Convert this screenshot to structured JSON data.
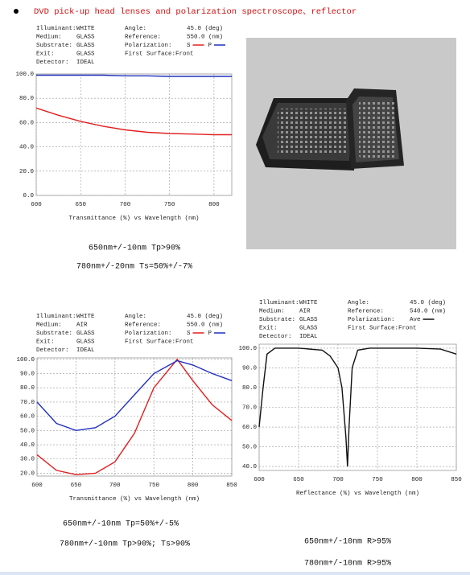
{
  "title": "DVD pick-up head lenses and polarization spectroscope、reflector",
  "chart_data": [
    {
      "type": "line",
      "info": {
        "left": [
          [
            "Illuminant:",
            "WHITE"
          ],
          [
            "Medium:",
            "GLASS"
          ],
          [
            "Substrate:",
            "GLASS"
          ],
          [
            "Exit:",
            "GLASS"
          ],
          [
            "Detector:",
            "IDEAL"
          ]
        ],
        "right": [
          [
            "Angle:",
            "45.0 (deg)"
          ],
          [
            "Reference:",
            "550.0 (nm)"
          ],
          [
            "Polarization:"
          ],
          [
            "First Surface:Front"
          ]
        ]
      },
      "x_label": "Transmittance (%)  vs  Wavelength (nm)",
      "x": [
        600,
        625,
        650,
        675,
        700,
        725,
        750,
        775,
        800,
        820
      ],
      "series": [
        {
          "name": "S",
          "color": "#e02020",
          "values": [
            72,
            66,
            61,
            57,
            54,
            52,
            51,
            50.5,
            50,
            50
          ]
        },
        {
          "name": "P",
          "color": "#2030c0",
          "values": [
            99,
            99,
            99,
            99,
            98.5,
            98.5,
            98,
            98,
            98,
            98
          ]
        }
      ],
      "xlim": [
        600,
        820
      ],
      "xticks": [
        600,
        650,
        700,
        750,
        800
      ],
      "ylim": [
        0,
        100
      ],
      "yticks": [
        {
          "value": 0,
          "label": "0.0"
        },
        {
          "value": 20,
          "label": "20.0"
        },
        {
          "value": 40,
          "label": "40.0"
        },
        {
          "value": 60,
          "label": "60.0"
        },
        {
          "value": 80,
          "label": "80.0"
        },
        {
          "value": 100,
          "label": "100.0"
        }
      ],
      "grid": true
    },
    {
      "type": "line",
      "info": {
        "left": [
          [
            "Illuminant:",
            "WHITE"
          ],
          [
            "Medium:",
            "AIR"
          ],
          [
            "Substrate:",
            "GLASS"
          ],
          [
            "Exit:",
            "GLASS"
          ],
          [
            "Detector:",
            "IDEAL"
          ]
        ],
        "right": [
          [
            "Angle:",
            "45.0 (deg)"
          ],
          [
            "Reference:",
            "550.0 (nm)"
          ],
          [
            "Polarization:"
          ],
          [
            "First Surface:Front"
          ]
        ]
      },
      "x_label": "Transmittance (%)  vs  Wavelength (nm)",
      "x": [
        600,
        625,
        650,
        675,
        700,
        725,
        750,
        780,
        800,
        825,
        850
      ],
      "series": [
        {
          "name": "S",
          "color": "#e02020",
          "values": [
            33,
            22,
            19,
            20,
            28,
            48,
            80,
            100,
            85,
            68,
            57
          ]
        },
        {
          "name": "P",
          "color": "#2030c0",
          "values": [
            70,
            55,
            50,
            52,
            60,
            75,
            90,
            99,
            96,
            90,
            85
          ]
        }
      ],
      "xlim": [
        600,
        850
      ],
      "xticks": [
        600,
        650,
        700,
        750,
        800,
        850
      ],
      "ylim": [
        18,
        101
      ],
      "yticks": [
        {
          "value": 20,
          "label": "20.0"
        },
        {
          "value": 30,
          "label": "30.0"
        },
        {
          "value": 40,
          "label": "40.0"
        },
        {
          "value": 50,
          "label": "50.0"
        },
        {
          "value": 60,
          "label": "60.0"
        },
        {
          "value": 70,
          "label": "70.0"
        },
        {
          "value": 80,
          "label": "80.0"
        },
        {
          "value": 90,
          "label": "90.0"
        },
        {
          "value": 100,
          "label": "100.0"
        }
      ],
      "grid": true
    },
    {
      "type": "line",
      "info": {
        "left": [
          [
            "Illuminant:",
            "WHITE"
          ],
          [
            "Medium:",
            "AIR"
          ],
          [
            "Substrate:",
            "GLASS"
          ],
          [
            "Exit:",
            "GLASS"
          ],
          [
            "Detector:",
            "IDEAL"
          ]
        ],
        "right": [
          [
            "Angle:",
            "45.0 (deg)"
          ],
          [
            "Reference:",
            "540.0 (nm)"
          ],
          [
            "Polarization:"
          ],
          [
            "First Surface:Front"
          ]
        ]
      },
      "x_label": "Reflectance (%)  vs  Wavelength (nm)",
      "x": [
        600,
        605,
        610,
        620,
        650,
        680,
        690,
        700,
        705,
        710,
        712,
        714,
        718,
        725,
        740,
        800,
        830,
        850
      ],
      "series": [
        {
          "name": "Ave",
          "color": "#111111",
          "values": [
            60,
            80,
            97,
            100,
            100,
            99,
            96,
            90,
            80,
            55,
            40,
            60,
            90,
            99,
            100,
            100,
            99.5,
            97
          ]
        }
      ],
      "xlim": [
        600,
        850
      ],
      "xticks": [
        600,
        650,
        700,
        750,
        800,
        850
      ],
      "ylim": [
        38,
        102
      ],
      "yticks": [
        {
          "value": 40,
          "label": "40.0"
        },
        {
          "value": 50,
          "label": "50.0"
        },
        {
          "value": 60,
          "label": "60.0"
        },
        {
          "value": 70,
          "label": "70.0"
        },
        {
          "value": 80,
          "label": "80.0"
        },
        {
          "value": 90,
          "label": "90.0"
        },
        {
          "value": 100,
          "label": "100.0"
        }
      ],
      "grid": true
    }
  ],
  "captions": [
    [
      "650nm+/-10nm Tp>90%",
      "780nm+/-20nm Ts=50%+/-7%"
    ],
    [
      "650nm+/-10nm Tp=50%+/-5%",
      "780nm+/-10nm Tp>90%; Ts>90%"
    ],
    [
      "650nm+/-10nm R>95%",
      "780nm+/-10nm R>95%"
    ]
  ]
}
